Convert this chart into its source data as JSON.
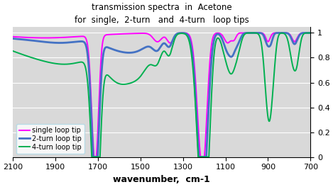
{
  "title_line1": "transmission spectra  in  Acetone",
  "title_line2": "for  single,  2-turn   and  4-turn   loop tips",
  "xlabel": "wavenumber,  cm-1",
  "xlim_left": 2100,
  "xlim_right": 700,
  "ylim": [
    0,
    1.05
  ],
  "yticks": [
    0,
    0.2,
    0.4,
    0.6,
    0.8,
    1
  ],
  "xticks": [
    2100,
    1900,
    1700,
    1500,
    1300,
    1100,
    900,
    700
  ],
  "legend": [
    "single loop tip",
    "2-turn loop tip",
    "4-turn loop tip"
  ],
  "colors": [
    "#ff00ff",
    "#4472c4",
    "#00b050"
  ],
  "background_color": "#d9d9d9",
  "linewidths": [
    1.4,
    2.0,
    1.4
  ]
}
